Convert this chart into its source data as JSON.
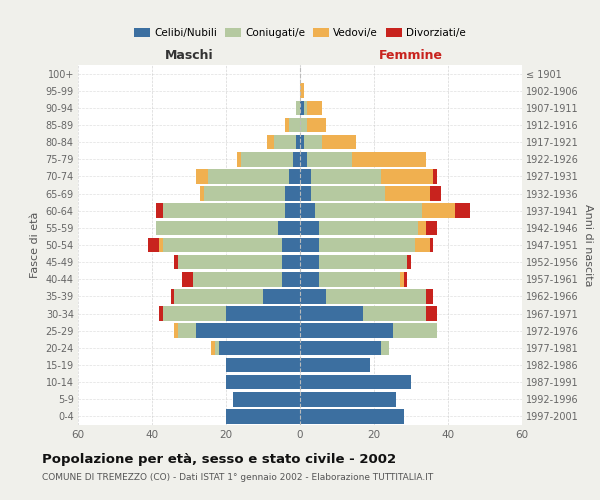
{
  "age_groups": [
    "0-4",
    "5-9",
    "10-14",
    "15-19",
    "20-24",
    "25-29",
    "30-34",
    "35-39",
    "40-44",
    "45-49",
    "50-54",
    "55-59",
    "60-64",
    "65-69",
    "70-74",
    "75-79",
    "80-84",
    "85-89",
    "90-94",
    "95-99",
    "100+"
  ],
  "birth_years": [
    "1997-2001",
    "1992-1996",
    "1987-1991",
    "1982-1986",
    "1977-1981",
    "1972-1976",
    "1967-1971",
    "1962-1966",
    "1957-1961",
    "1952-1956",
    "1947-1951",
    "1942-1946",
    "1937-1941",
    "1932-1936",
    "1927-1931",
    "1922-1926",
    "1917-1921",
    "1912-1916",
    "1907-1911",
    "1902-1906",
    "≤ 1901"
  ],
  "male": {
    "celibi": [
      20,
      18,
      20,
      20,
      22,
      28,
      20,
      10,
      5,
      5,
      5,
      6,
      4,
      4,
      3,
      2,
      1,
      0,
      0,
      0,
      0
    ],
    "coniugati": [
      0,
      0,
      0,
      0,
      1,
      5,
      17,
      24,
      24,
      28,
      32,
      33,
      33,
      22,
      22,
      14,
      6,
      3,
      1,
      0,
      0
    ],
    "vedovi": [
      0,
      0,
      0,
      0,
      1,
      1,
      0,
      0,
      0,
      0,
      1,
      0,
      0,
      1,
      3,
      1,
      2,
      1,
      0,
      0,
      0
    ],
    "divorziati": [
      0,
      0,
      0,
      0,
      0,
      0,
      1,
      1,
      3,
      1,
      3,
      0,
      2,
      0,
      0,
      0,
      0,
      0,
      0,
      0,
      0
    ]
  },
  "female": {
    "nubili": [
      28,
      26,
      30,
      19,
      22,
      25,
      17,
      7,
      5,
      5,
      5,
      5,
      4,
      3,
      3,
      2,
      1,
      0,
      1,
      0,
      0
    ],
    "coniugate": [
      0,
      0,
      0,
      0,
      2,
      12,
      17,
      27,
      22,
      24,
      26,
      27,
      29,
      20,
      19,
      12,
      5,
      2,
      1,
      0,
      0
    ],
    "vedove": [
      0,
      0,
      0,
      0,
      0,
      0,
      0,
      0,
      1,
      0,
      4,
      2,
      9,
      12,
      14,
      20,
      9,
      5,
      4,
      1,
      0
    ],
    "divorziate": [
      0,
      0,
      0,
      0,
      0,
      0,
      3,
      2,
      1,
      1,
      1,
      3,
      4,
      3,
      1,
      0,
      0,
      0,
      0,
      0,
      0
    ]
  },
  "colors": {
    "celibi": "#3c6fa0",
    "coniugati": "#b5c9a0",
    "vedovi": "#f0b050",
    "divorziati": "#c8231e"
  },
  "xlim": 60,
  "xticks": [
    -60,
    -40,
    -20,
    0,
    20,
    40,
    60
  ],
  "title": "Popolazione per età, sesso e stato civile - 2002",
  "subtitle": "COMUNE DI TREMEZZO (CO) - Dati ISTAT 1° gennaio 2002 - Elaborazione TUTTITALIA.IT",
  "xlabel_left": "Maschi",
  "xlabel_right": "Femmine",
  "ylabel": "Fasce di età",
  "ylabel_right": "Anni di nascita",
  "bg_color": "#f0f0eb",
  "plot_bg": "#ffffff",
  "legend_labels": [
    "Celibi/Nubili",
    "Coniugati/e",
    "Vedovi/e",
    "Divorziati/e"
  ]
}
